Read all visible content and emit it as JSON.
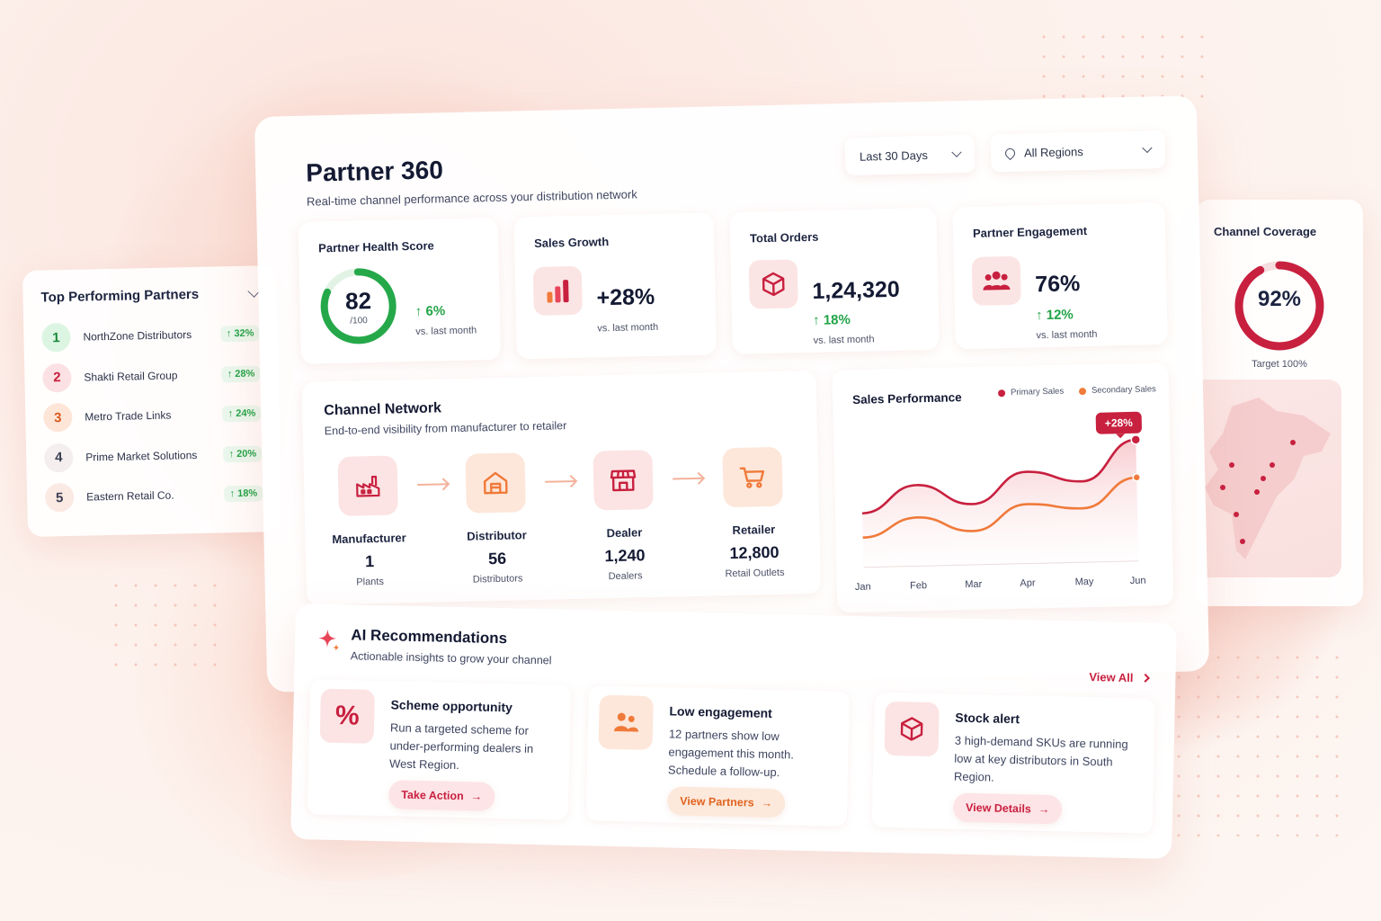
{
  "app": {
    "title": "Partner 360",
    "subtitle": "Real-time channel performance across your distribution network"
  },
  "filters": {
    "date_range": "Last 30 Days",
    "region": "All Regions"
  },
  "top_partners": {
    "title": "Top Performing Partners",
    "items": [
      {
        "rank": "1",
        "name": "NorthZone Distributors",
        "growth": "↑ 32%"
      },
      {
        "rank": "2",
        "name": "Shakti Retail Group",
        "growth": "↑ 28%"
      },
      {
        "rank": "3",
        "name": "Metro Trade Links",
        "growth": "↑ 24%"
      },
      {
        "rank": "4",
        "name": "Prime Market Solutions",
        "growth": "↑ 20%"
      },
      {
        "rank": "5",
        "name": "Eastern Retail Co.",
        "growth": "↑ 18%"
      }
    ]
  },
  "kpis": {
    "health": {
      "title": "Partner Health Score",
      "value": "82",
      "denominator": "/100",
      "progress": 0.82,
      "change": "↑ 6%",
      "note": "vs. last month"
    },
    "sales_growth": {
      "title": "Sales Growth",
      "value": "+28%",
      "note": "vs. last month"
    },
    "orders": {
      "title": "Total Orders",
      "value": "1,24,320",
      "change": "↑ 18%",
      "note": "vs. last month"
    },
    "engagement": {
      "title": "Partner Engagement",
      "value": "76%",
      "change": "↑ 12%",
      "note": "vs. last month"
    }
  },
  "channel_network": {
    "title": "Channel Network",
    "subtitle": "End-to-end visibility from manufacturer to retailer",
    "nodes": [
      {
        "label": "Manufacturer",
        "value": "1",
        "unit": "Plants"
      },
      {
        "label": "Distributor",
        "value": "56",
        "unit": "Distributors"
      },
      {
        "label": "Dealer",
        "value": "1,240",
        "unit": "Dealers"
      },
      {
        "label": "Retailer",
        "value": "12,800",
        "unit": "Retail Outlets"
      }
    ]
  },
  "channel_coverage": {
    "title": "Channel Coverage",
    "value": "92%",
    "progress": 0.92,
    "target": "Target 100%"
  },
  "chart_data": {
    "type": "line",
    "title": "Sales Performance",
    "categories": [
      "Jan",
      "Feb",
      "Mar",
      "Apr",
      "May",
      "Jun"
    ],
    "series": [
      {
        "name": "Primary Sales",
        "color": "#c8203f",
        "values": [
          40,
          60,
          45,
          68,
          60,
          90
        ]
      },
      {
        "name": "Secondary Sales",
        "color": "#f07a3a",
        "values": [
          22,
          36,
          25,
          44,
          40,
          62
        ]
      }
    ],
    "ylim": [
      0,
      100
    ],
    "annotation": "+28%",
    "grid": false,
    "legend": "top-right"
  },
  "recommendations": {
    "title": "AI Recommendations",
    "subtitle": "Actionable insights to grow your channel",
    "view_all": "View All",
    "items": [
      {
        "icon": "percent-icon",
        "title": "Scheme opportunity",
        "desc": "Run a targeted scheme for under-performing dealers in West Region.",
        "action": "Take Action"
      },
      {
        "icon": "users-icon",
        "title": "Low engagement",
        "desc": "12 partners show low engagement this month. Schedule a follow-up.",
        "action": "View Partners"
      },
      {
        "icon": "box-icon",
        "title": "Stock alert",
        "desc": "3 high-demand SKUs are running low at key distributors in South Region.",
        "action": "View Details"
      }
    ]
  },
  "colors": {
    "accent": "#c8203f",
    "secondary": "#f07a3a",
    "positive": "#22a447"
  }
}
